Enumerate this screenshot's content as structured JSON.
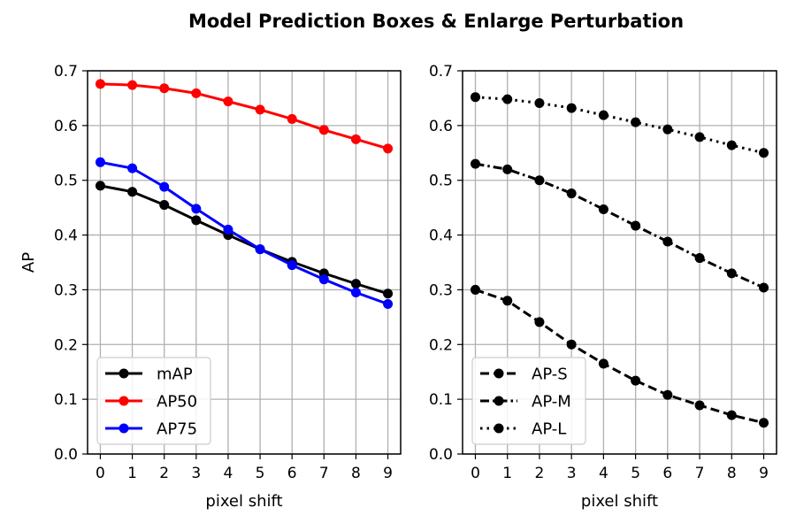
{
  "title": "Model Prediction Boxes  &  Enlarge Perturbation",
  "chart_data": [
    {
      "type": "line",
      "xlabel": "pixel shift",
      "ylabel": "AP",
      "x": [
        0,
        1,
        2,
        3,
        4,
        5,
        6,
        7,
        8,
        9
      ],
      "xlim": [
        -0.4,
        9.4
      ],
      "ylim": [
        0.0,
        0.7
      ],
      "yticks": [
        0.0,
        0.1,
        0.2,
        0.3,
        0.4,
        0.5,
        0.6,
        0.7
      ],
      "grid": true,
      "legend_position": "lower-left",
      "series": [
        {
          "name": "mAP",
          "color": "#000000",
          "dash": "solid",
          "values": [
            0.49,
            0.479,
            0.455,
            0.427,
            0.4,
            0.374,
            0.351,
            0.33,
            0.311,
            0.293
          ]
        },
        {
          "name": "AP50",
          "color": "#ff0000",
          "dash": "solid",
          "values": [
            0.676,
            0.674,
            0.668,
            0.659,
            0.644,
            0.629,
            0.612,
            0.592,
            0.575,
            0.558
          ]
        },
        {
          "name": "AP75",
          "color": "#0000ff",
          "dash": "solid",
          "values": [
            0.533,
            0.522,
            0.488,
            0.448,
            0.41,
            0.374,
            0.345,
            0.319,
            0.295,
            0.274
          ]
        }
      ]
    },
    {
      "type": "line",
      "xlabel": "pixel shift",
      "ylabel": "",
      "x": [
        0,
        1,
        2,
        3,
        4,
        5,
        6,
        7,
        8,
        9
      ],
      "xlim": [
        -0.4,
        9.4
      ],
      "ylim": [
        0.0,
        0.7
      ],
      "yticks": [
        0.0,
        0.1,
        0.2,
        0.3,
        0.4,
        0.5,
        0.6,
        0.7
      ],
      "grid": true,
      "legend_position": "lower-left",
      "series": [
        {
          "name": "AP-S",
          "color": "#000000",
          "dash": "dashed",
          "values": [
            0.3,
            0.28,
            0.241,
            0.2,
            0.165,
            0.134,
            0.108,
            0.089,
            0.071,
            0.057
          ]
        },
        {
          "name": "AP-M",
          "color": "#000000",
          "dash": "dashdot",
          "values": [
            0.53,
            0.52,
            0.5,
            0.476,
            0.447,
            0.417,
            0.388,
            0.358,
            0.33,
            0.304
          ]
        },
        {
          "name": "AP-L",
          "color": "#000000",
          "dash": "dotted",
          "values": [
            0.652,
            0.648,
            0.641,
            0.632,
            0.619,
            0.606,
            0.593,
            0.579,
            0.564,
            0.55
          ]
        }
      ]
    }
  ]
}
